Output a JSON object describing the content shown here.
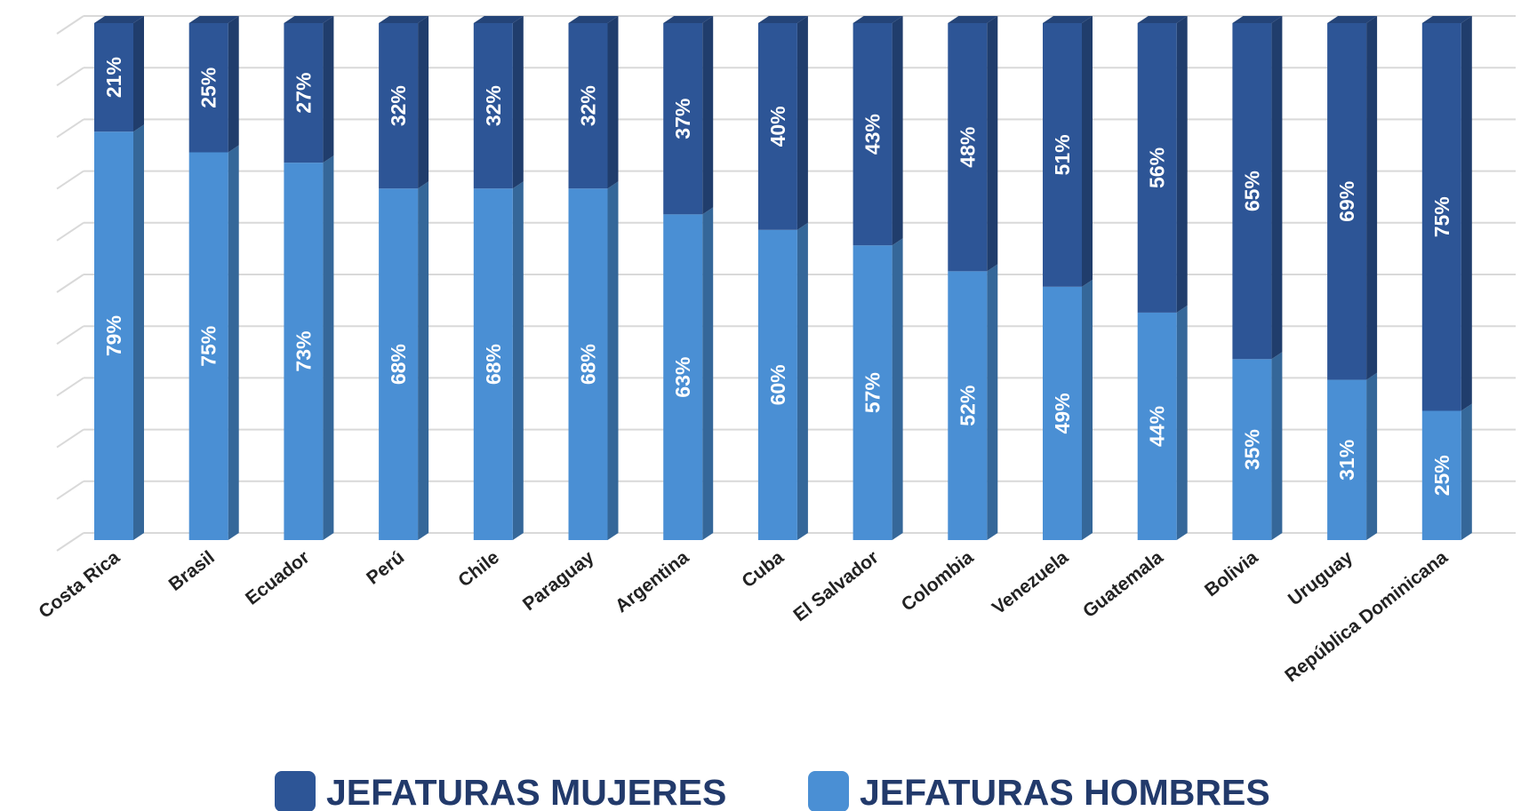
{
  "chart_data": {
    "type": "stacked_bar",
    "categories": [
      "Costa Rica",
      "Brasil",
      "Ecuador",
      "Perú",
      "Chile",
      "Paraguay",
      "Argentina",
      "Cuba",
      "El Salvador",
      "Colombia",
      "Venezuela",
      "Guatemala",
      "Bolivia",
      "Uruguay",
      "República Dominicana"
    ],
    "series": [
      {
        "name": "JEFATURAS MUJERES",
        "color": "#2d5596",
        "values": [
          21,
          25,
          27,
          32,
          32,
          32,
          37,
          40,
          43,
          48,
          51,
          56,
          65,
          69,
          75
        ],
        "value_labels": [
          "21%",
          "25%",
          "27%",
          "32%",
          "32%",
          "32%",
          "37%",
          "40%",
          "43%",
          "48%",
          "51%",
          "56%",
          "65%",
          "69%",
          "75%"
        ]
      },
      {
        "name": "JEFATURAS HOMBRES",
        "color": "#4a8fd4",
        "values": [
          79,
          75,
          73,
          68,
          68,
          68,
          63,
          60,
          57,
          52,
          49,
          44,
          35,
          31,
          25
        ],
        "value_labels": [
          "79%",
          "75%",
          "73%",
          "68%",
          "68%",
          "68%",
          "63%",
          "60%",
          "57%",
          "52%",
          "49%",
          "44%",
          "35%",
          "31%",
          "25%"
        ]
      }
    ],
    "ylim": [
      0,
      100
    ],
    "yticks": [
      0,
      10,
      20,
      30,
      40,
      50,
      60,
      70,
      80,
      90,
      100
    ],
    "grid": true
  }
}
